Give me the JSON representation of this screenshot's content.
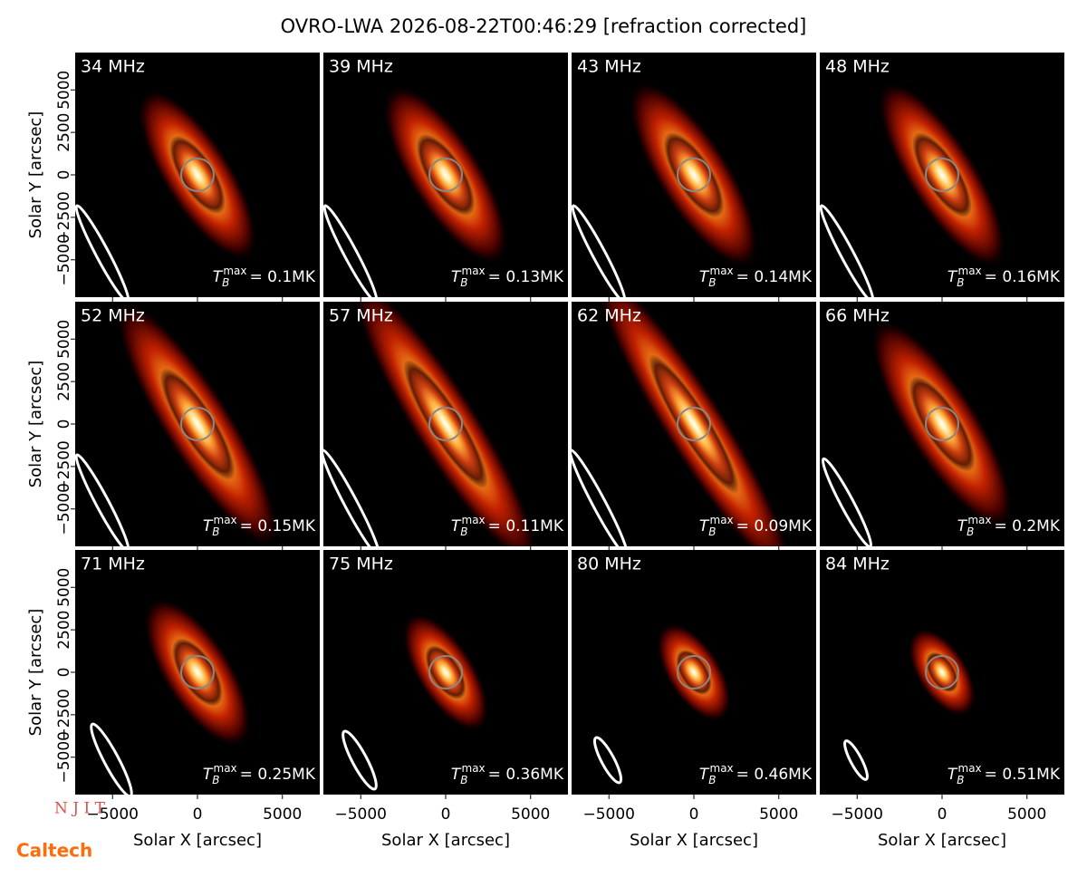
{
  "chart_data": {
    "type": "image",
    "title": "OVRO-LWA 2026-08-22T00:46:29 [refraction corrected]",
    "x_label": "Solar X [arcsec]",
    "y_label": "Solar Y [arcsec]",
    "xlim": [
      -7200,
      7200
    ],
    "ylim": [
      -7200,
      7200
    ],
    "xticks": [
      {
        "value": -5000,
        "label": "−5000"
      },
      0,
      5000
    ],
    "yticks": [
      {
        "value": -5000,
        "label": "−5000"
      },
      {
        "value": -2500,
        "label": "−2500"
      },
      0,
      2500,
      5000
    ],
    "tb_symbol": "T",
    "tb_sub": "B",
    "tb_sup": "max",
    "panels": [
      {
        "frequency": "34 MHz",
        "tb_text": "= 0.1MK"
      },
      {
        "frequency": "39 MHz",
        "tb_text": "= 0.13MK"
      },
      {
        "frequency": "43 MHz",
        "tb_text": "= 0.14MK"
      },
      {
        "frequency": "48 MHz",
        "tb_text": "= 0.16MK"
      },
      {
        "frequency": "52 MHz",
        "tb_text": "= 0.15MK"
      },
      {
        "frequency": "57 MHz",
        "tb_text": "= 0.11MK"
      },
      {
        "frequency": "62 MHz",
        "tb_text": "= 0.09MK"
      },
      {
        "frequency": "66 MHz",
        "tb_text": "= 0.2MK"
      },
      {
        "frequency": "71 MHz",
        "tb_text": "= 0.25MK"
      },
      {
        "frequency": "75 MHz",
        "tb_text": "= 0.36MK"
      },
      {
        "frequency": "80 MHz",
        "tb_text": "= 0.46MK"
      },
      {
        "frequency": "84 MHz",
        "tb_text": "= 0.51MK"
      }
    ],
    "logos": [
      "N J I T",
      "Caltech"
    ]
  }
}
